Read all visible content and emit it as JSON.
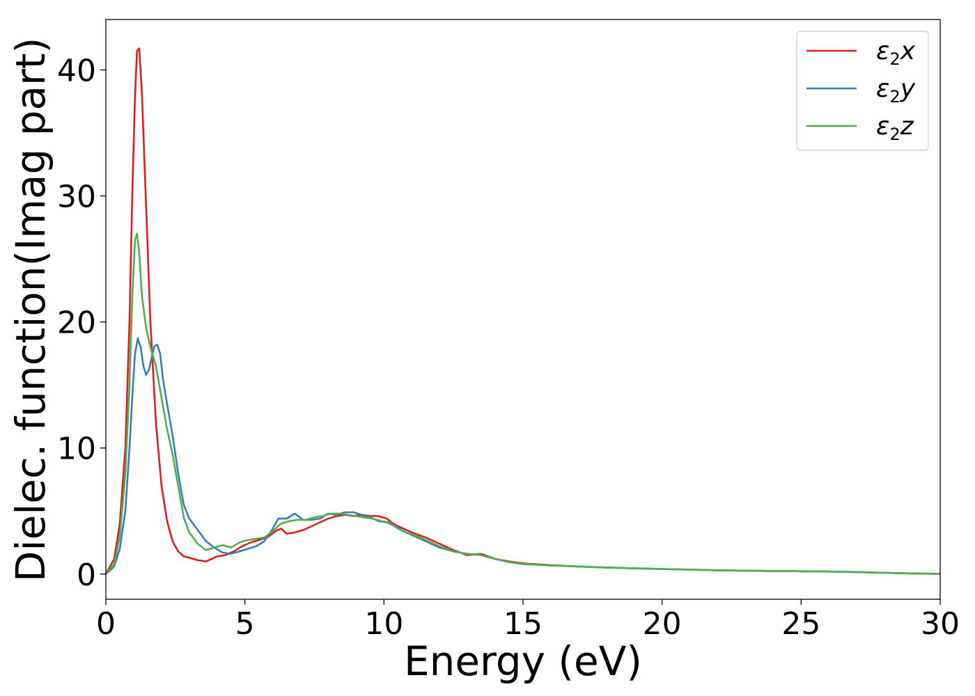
{
  "chart_data": {
    "type": "line",
    "title": "",
    "xlabel": "Energy (eV)",
    "ylabel": "Dielec. function(Imag part)",
    "xlim": [
      0,
      30
    ],
    "ylim": [
      -2,
      44
    ],
    "xticks": [
      0,
      5,
      10,
      15,
      20,
      25,
      30
    ],
    "yticks": [
      0,
      10,
      20,
      30,
      40
    ],
    "grid": false,
    "legend_position": "top-right",
    "series": [
      {
        "name": "ε2x",
        "legend": {
          "base": "ε",
          "sub": "2",
          "suffix": "x"
        },
        "color": "#e41a1c",
        "x": [
          0,
          0.3,
          0.5,
          0.7,
          0.85,
          0.95,
          1.05,
          1.12,
          1.2,
          1.3,
          1.45,
          1.6,
          1.8,
          2.0,
          2.2,
          2.4,
          2.6,
          2.8,
          3.0,
          3.3,
          3.6,
          3.8,
          4.0,
          4.3,
          4.6,
          4.9,
          5.2,
          5.5,
          5.8,
          6.1,
          6.3,
          6.5,
          6.8,
          7.1,
          7.4,
          7.7,
          8.0,
          8.3,
          8.6,
          8.9,
          9.2,
          9.5,
          9.8,
          10.1,
          10.4,
          10.7,
          11.0,
          11.5,
          12.0,
          12.5,
          13.0,
          13.5,
          14.0,
          14.5,
          15.0,
          16,
          17,
          18,
          19,
          20,
          21,
          22,
          23,
          24,
          25,
          26,
          27,
          28,
          29,
          30
        ],
        "y": [
          0,
          1.2,
          4,
          10,
          20,
          30,
          38,
          41.5,
          41.7,
          38,
          29,
          20,
          12,
          7,
          4.2,
          2.6,
          1.8,
          1.4,
          1.3,
          1.1,
          1.0,
          1.2,
          1.4,
          1.5,
          1.8,
          2.2,
          2.5,
          2.7,
          2.9,
          3.4,
          3.6,
          3.2,
          3.3,
          3.5,
          3.8,
          4.1,
          4.4,
          4.6,
          4.7,
          4.6,
          4.7,
          4.6,
          4.6,
          4.4,
          3.9,
          3.6,
          3.3,
          2.9,
          2.4,
          1.9,
          1.5,
          1.6,
          1.2,
          1.0,
          0.85,
          0.7,
          0.6,
          0.52,
          0.45,
          0.4,
          0.35,
          0.3,
          0.27,
          0.24,
          0.22,
          0.2,
          0.16,
          0.1,
          0.05,
          0.02
        ]
      },
      {
        "name": "ε2y",
        "legend": {
          "base": "ε",
          "sub": "2",
          "suffix": "y"
        },
        "color": "#377eb8",
        "x": [
          0,
          0.3,
          0.5,
          0.7,
          0.85,
          0.95,
          1.05,
          1.15,
          1.25,
          1.35,
          1.45,
          1.55,
          1.65,
          1.75,
          1.85,
          1.95,
          2.05,
          2.2,
          2.4,
          2.6,
          2.8,
          3.0,
          3.3,
          3.6,
          3.9,
          4.2,
          4.5,
          4.8,
          5.1,
          5.4,
          5.7,
          6.0,
          6.2,
          6.5,
          6.8,
          7.1,
          7.4,
          7.7,
          8.0,
          8.3,
          8.6,
          8.9,
          9.2,
          9.5,
          9.8,
          10.1,
          10.4,
          10.7,
          11.0,
          11.5,
          12.0,
          12.5,
          13.0,
          13.5,
          14.0,
          14.5,
          15.0,
          16,
          17,
          18,
          19,
          20,
          21,
          22,
          23,
          24,
          25,
          26,
          27,
          28,
          29,
          30
        ],
        "y": [
          0,
          0.6,
          2,
          5,
          10,
          14,
          17.5,
          18.7,
          18,
          16.5,
          15.8,
          16.2,
          17.2,
          18.1,
          18.2,
          17.5,
          15.5,
          13.5,
          11,
          8,
          5.5,
          4.4,
          3.5,
          2.6,
          2.1,
          1.7,
          1.6,
          1.8,
          2.0,
          2.2,
          2.6,
          3.6,
          4.4,
          4.4,
          4.8,
          4.3,
          4.3,
          4.4,
          4.8,
          4.7,
          4.9,
          4.9,
          4.7,
          4.5,
          4.2,
          4.1,
          3.8,
          3.4,
          3.1,
          2.6,
          2.1,
          1.8,
          1.6,
          1.5,
          1.2,
          0.95,
          0.8,
          0.68,
          0.6,
          0.52,
          0.45,
          0.4,
          0.35,
          0.3,
          0.27,
          0.24,
          0.22,
          0.2,
          0.16,
          0.1,
          0.05,
          0.02
        ]
      },
      {
        "name": "ε2z",
        "legend": {
          "base": "ε",
          "sub": "2",
          "suffix": "z"
        },
        "color": "#4daf4a",
        "x": [
          0,
          0.3,
          0.5,
          0.7,
          0.85,
          0.95,
          1.05,
          1.12,
          1.2,
          1.3,
          1.45,
          1.6,
          1.8,
          2.0,
          2.2,
          2.4,
          2.6,
          2.8,
          3.0,
          3.3,
          3.6,
          3.9,
          4.2,
          4.5,
          4.8,
          5.1,
          5.4,
          5.7,
          6.0,
          6.3,
          6.6,
          6.9,
          7.2,
          7.5,
          7.8,
          8.1,
          8.4,
          8.7,
          9.0,
          9.3,
          9.6,
          9.9,
          10.2,
          10.5,
          10.8,
          11.1,
          11.5,
          12.0,
          12.5,
          13.0,
          13.5,
          14.0,
          14.5,
          15.0,
          16,
          17,
          18,
          19,
          20,
          21,
          22,
          23,
          24,
          25,
          26,
          27,
          28,
          29,
          30
        ],
        "y": [
          0,
          0.8,
          3,
          8,
          15,
          22,
          26.5,
          27,
          25.5,
          22,
          19.5,
          18,
          16.5,
          14,
          11.5,
          9.5,
          7,
          4.5,
          3.3,
          2.4,
          1.9,
          2.1,
          2.3,
          2.1,
          2.5,
          2.7,
          2.8,
          2.9,
          3.4,
          4.0,
          4.2,
          4.3,
          4.3,
          4.5,
          4.6,
          4.8,
          4.8,
          4.7,
          4.6,
          4.5,
          4.4,
          4.2,
          4.1,
          3.6,
          3.3,
          3.1,
          2.7,
          2.2,
          1.8,
          1.6,
          1.5,
          1.2,
          0.95,
          0.8,
          0.68,
          0.6,
          0.52,
          0.45,
          0.4,
          0.35,
          0.3,
          0.27,
          0.24,
          0.22,
          0.2,
          0.16,
          0.1,
          0.05,
          0.02
        ]
      }
    ]
  }
}
